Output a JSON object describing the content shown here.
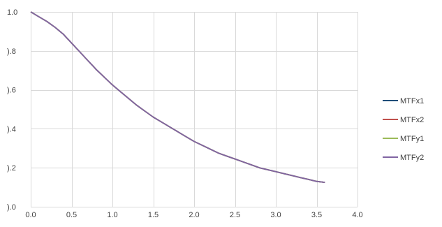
{
  "chart_data": {
    "type": "line",
    "title": "",
    "xlabel": "",
    "ylabel": "",
    "xlim": [
      0,
      4
    ],
    "ylim": [
      0,
      1
    ],
    "x_ticks": [
      0.0,
      0.5,
      1.0,
      1.5,
      2.0,
      2.5,
      3.0,
      3.5,
      4.0
    ],
    "x_tick_labels": [
      "0.0",
      "0.5",
      "1.0",
      "1.5",
      "2.0",
      "2.5",
      "3.0",
      "3.5",
      "4.0"
    ],
    "y_ticks": [
      0.0,
      0.2,
      0.4,
      0.6,
      0.8,
      1.0
    ],
    "y_tick_labels": [
      ").0",
      ").2",
      ").4",
      ").6",
      ").8",
      "1.0"
    ],
    "grid": true,
    "legend_position": "right",
    "series": [
      {
        "name": "MTFx1",
        "color": "#1f4e79",
        "x": [
          0,
          0.1,
          0.2,
          0.3,
          0.4,
          0.5,
          0.6,
          0.7,
          0.8,
          0.9,
          1.0,
          1.1,
          1.2,
          1.3,
          1.4,
          1.5,
          1.6,
          1.7,
          1.8,
          1.9,
          2.0,
          2.1,
          2.2,
          2.3,
          2.4,
          2.5,
          2.6,
          2.7,
          2.8,
          2.9,
          3.0,
          3.1,
          3.2,
          3.3,
          3.4,
          3.5,
          3.6
        ],
        "y": [
          1.0,
          0.975,
          0.95,
          0.92,
          0.885,
          0.84,
          0.795,
          0.75,
          0.705,
          0.665,
          0.625,
          0.59,
          0.555,
          0.52,
          0.49,
          0.46,
          0.435,
          0.41,
          0.385,
          0.36,
          0.335,
          0.315,
          0.295,
          0.275,
          0.26,
          0.245,
          0.23,
          0.215,
          0.2,
          0.19,
          0.18,
          0.17,
          0.16,
          0.15,
          0.14,
          0.13,
          0.125
        ]
      },
      {
        "name": "MTFx2",
        "color": "#c0504d",
        "x": [
          0,
          0.1,
          0.2,
          0.3,
          0.4,
          0.5,
          0.6,
          0.7,
          0.8,
          0.9,
          1.0,
          1.1,
          1.2,
          1.3,
          1.4,
          1.5,
          1.6,
          1.7,
          1.8,
          1.9,
          2.0,
          2.1,
          2.2,
          2.3,
          2.4,
          2.5,
          2.6,
          2.7,
          2.8,
          2.9,
          3.0,
          3.1,
          3.2,
          3.3,
          3.4,
          3.5,
          3.6
        ],
        "y": [
          1.0,
          0.975,
          0.95,
          0.92,
          0.885,
          0.84,
          0.795,
          0.75,
          0.705,
          0.665,
          0.625,
          0.59,
          0.555,
          0.52,
          0.49,
          0.46,
          0.435,
          0.41,
          0.385,
          0.36,
          0.335,
          0.315,
          0.295,
          0.275,
          0.26,
          0.245,
          0.23,
          0.215,
          0.2,
          0.19,
          0.18,
          0.17,
          0.16,
          0.15,
          0.14,
          0.13,
          0.125
        ]
      },
      {
        "name": "MTFy1",
        "color": "#9bbb59",
        "x": [
          0,
          0.1,
          0.2,
          0.3,
          0.4,
          0.5,
          0.6,
          0.7,
          0.8,
          0.9,
          1.0,
          1.1,
          1.2,
          1.3,
          1.4,
          1.5,
          1.6,
          1.7,
          1.8,
          1.9,
          2.0,
          2.1,
          2.2,
          2.3,
          2.4,
          2.5,
          2.6,
          2.7,
          2.8,
          2.9,
          3.0,
          3.1,
          3.2,
          3.3,
          3.4,
          3.5,
          3.6
        ],
        "y": [
          1.0,
          0.975,
          0.95,
          0.92,
          0.885,
          0.84,
          0.795,
          0.75,
          0.705,
          0.665,
          0.625,
          0.59,
          0.555,
          0.52,
          0.49,
          0.46,
          0.435,
          0.41,
          0.385,
          0.36,
          0.335,
          0.315,
          0.295,
          0.275,
          0.26,
          0.245,
          0.23,
          0.215,
          0.2,
          0.19,
          0.18,
          0.17,
          0.16,
          0.15,
          0.14,
          0.13,
          0.125
        ]
      },
      {
        "name": "MTFy2",
        "color": "#8064a2",
        "x": [
          0,
          0.1,
          0.2,
          0.3,
          0.4,
          0.5,
          0.6,
          0.7,
          0.8,
          0.9,
          1.0,
          1.1,
          1.2,
          1.3,
          1.4,
          1.5,
          1.6,
          1.7,
          1.8,
          1.9,
          2.0,
          2.1,
          2.2,
          2.3,
          2.4,
          2.5,
          2.6,
          2.7,
          2.8,
          2.9,
          3.0,
          3.1,
          3.2,
          3.3,
          3.4,
          3.5,
          3.6
        ],
        "y": [
          1.0,
          0.975,
          0.95,
          0.92,
          0.885,
          0.84,
          0.795,
          0.75,
          0.705,
          0.665,
          0.625,
          0.59,
          0.555,
          0.52,
          0.49,
          0.46,
          0.435,
          0.41,
          0.385,
          0.36,
          0.335,
          0.315,
          0.295,
          0.275,
          0.26,
          0.245,
          0.23,
          0.215,
          0.2,
          0.19,
          0.18,
          0.17,
          0.16,
          0.15,
          0.14,
          0.13,
          0.125
        ]
      }
    ]
  }
}
